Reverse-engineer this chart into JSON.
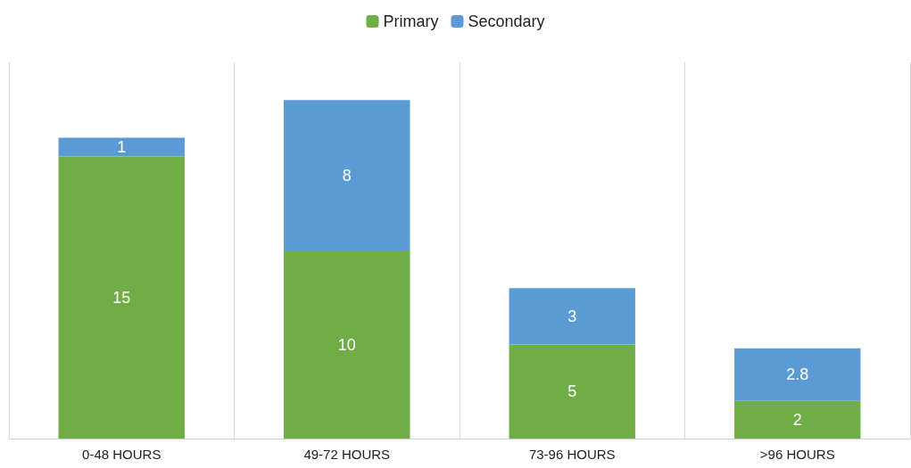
{
  "chart_data": {
    "type": "bar",
    "stacked": true,
    "categories": [
      "0-48 HOURS",
      "49-72 HOURS",
      "73-96 HOURS",
      ">96 HOURS"
    ],
    "series": [
      {
        "name": "Primary",
        "color": "#70ad47",
        "values": [
          15,
          10,
          5,
          2
        ]
      },
      {
        "name": "Secondary",
        "color": "#5b9bd5",
        "values": [
          1,
          8,
          3,
          2.8
        ]
      }
    ],
    "data_labels": true,
    "legend": "top",
    "grid": "x"
  }
}
